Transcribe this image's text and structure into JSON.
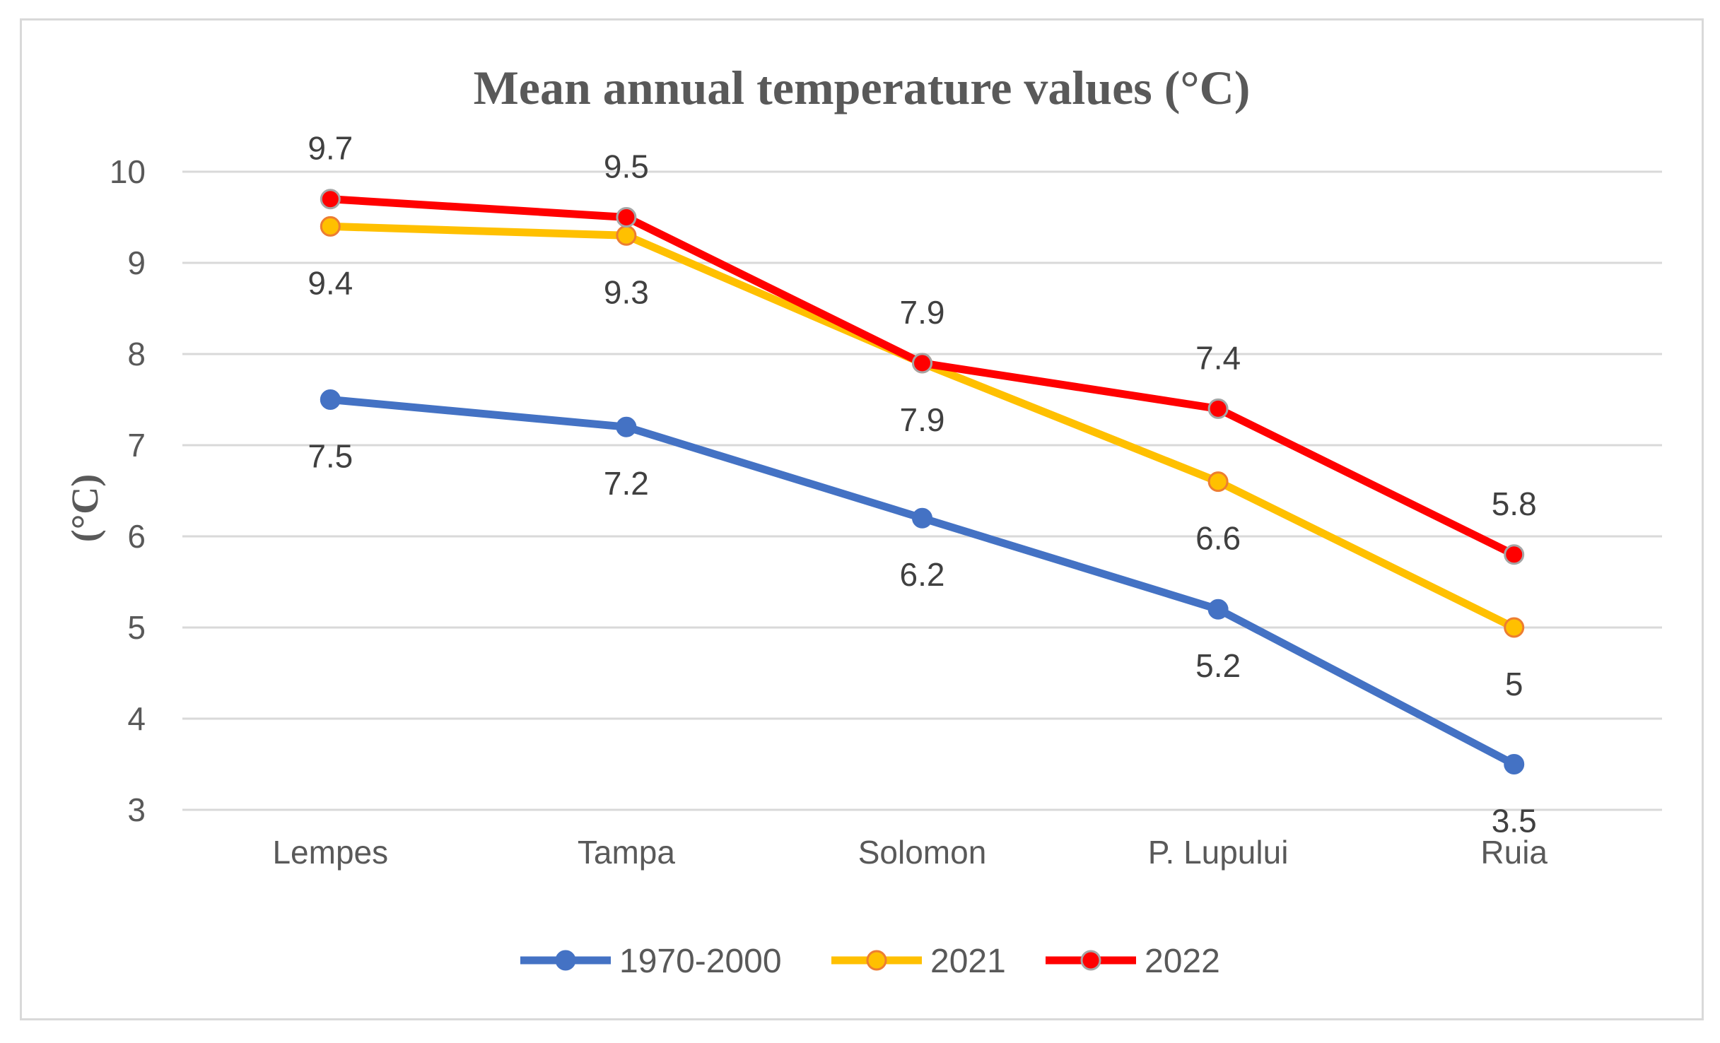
{
  "chart_data": {
    "type": "line",
    "title": "Mean annual temperature values (°C)",
    "xlabel": "",
    "ylabel": "(°C)",
    "ylim": [
      3,
      10
    ],
    "yticks": [
      "3",
      "4",
      "5",
      "6",
      "7",
      "8",
      "9",
      "10"
    ],
    "grid": true,
    "legend_position": "bottom",
    "categories": [
      "Lempes",
      "Tampa",
      "Solomon",
      "P. Lupului",
      "Ruia"
    ],
    "series": [
      {
        "name": "1970-2000",
        "values": [
          7.5,
          7.2,
          6.2,
          5.2,
          3.5
        ],
        "labels": [
          "7.5",
          "7.2",
          "6.2",
          "5.2",
          "3.5"
        ],
        "label_position": "below",
        "color": "#4472c4",
        "marker_fill": "#4472c4",
        "marker_stroke": "#4472c4"
      },
      {
        "name": "2021",
        "values": [
          9.4,
          9.3,
          7.9,
          6.6,
          5.0
        ],
        "labels": [
          "9.4",
          "9.3",
          "7.9",
          "6.6",
          "5"
        ],
        "label_position": "below",
        "color": "#ffc000",
        "marker_fill": "#ffc000",
        "marker_stroke": "#ed7d31"
      },
      {
        "name": "2022",
        "values": [
          9.7,
          9.5,
          7.9,
          7.4,
          5.8
        ],
        "labels": [
          "9.7",
          "9.5",
          "7.9",
          "7.4",
          "5.8"
        ],
        "label_position": "above",
        "color": "#ff0000",
        "marker_fill": "#ff0000",
        "marker_stroke": "#a5a5a5"
      }
    ]
  }
}
